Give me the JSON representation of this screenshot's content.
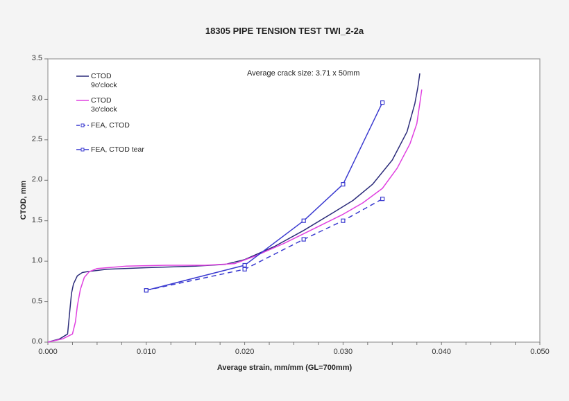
{
  "chart_data": {
    "type": "line",
    "title": "18305 PIPE TENSION TEST TWI_2-2a",
    "xlabel": "Average strain, mm/mm (GL=700mm)",
    "ylabel": "CTOD, mm",
    "xlim": [
      0.0,
      0.05
    ],
    "ylim": [
      0.0,
      3.5
    ],
    "x_ticks": [
      "0.000",
      "0.010",
      "0.020",
      "0.030",
      "0.040",
      "0.050"
    ],
    "y_ticks": [
      "0.0",
      "0.5",
      "1.0",
      "1.5",
      "2.0",
      "2.5",
      "3.0",
      "3.5"
    ],
    "grid": false,
    "legend_position": "upper-left-inside",
    "annotation": "Average crack size: 3.71 x 50mm",
    "series": [
      {
        "name": "CTOD 9o'clock",
        "color": "#2b2b7a",
        "style": "solid",
        "marker": "none",
        "x": [
          0.0,
          0.0012,
          0.002,
          0.0022,
          0.0024,
          0.0026,
          0.003,
          0.0035,
          0.004,
          0.006,
          0.01,
          0.015,
          0.018,
          0.02,
          0.023,
          0.026,
          0.029,
          0.031,
          0.033,
          0.035,
          0.0365,
          0.0373,
          0.0376,
          0.0378
        ],
        "y": [
          0.0,
          0.04,
          0.1,
          0.35,
          0.6,
          0.72,
          0.82,
          0.86,
          0.87,
          0.9,
          0.92,
          0.94,
          0.96,
          1.02,
          1.18,
          1.38,
          1.6,
          1.75,
          1.95,
          2.25,
          2.6,
          2.95,
          3.15,
          3.32
        ]
      },
      {
        "name": "CTOD 3o'clock",
        "color": "#e040e0",
        "style": "solid",
        "marker": "none",
        "x": [
          0.0,
          0.0015,
          0.0025,
          0.0028,
          0.003,
          0.0033,
          0.0037,
          0.0042,
          0.005,
          0.008,
          0.012,
          0.016,
          0.019,
          0.021,
          0.024,
          0.027,
          0.03,
          0.032,
          0.034,
          0.0355,
          0.0368,
          0.0375,
          0.0378,
          0.038
        ],
        "y": [
          0.0,
          0.04,
          0.1,
          0.25,
          0.45,
          0.65,
          0.8,
          0.87,
          0.91,
          0.94,
          0.95,
          0.95,
          0.97,
          1.06,
          1.22,
          1.4,
          1.58,
          1.72,
          1.9,
          2.15,
          2.45,
          2.7,
          2.95,
          3.12
        ]
      },
      {
        "name": "FEA, CTOD",
        "color": "#3a3ad0",
        "style": "dashed",
        "marker": "square",
        "x": [
          0.01,
          0.02,
          0.026,
          0.03,
          0.034
        ],
        "y": [
          0.64,
          0.9,
          1.27,
          1.5,
          1.77
        ]
      },
      {
        "name": "FEA, CTOD tear",
        "color": "#3a3ad0",
        "style": "solid",
        "marker": "square",
        "x": [
          0.01,
          0.02,
          0.026,
          0.03,
          0.034
        ],
        "y": [
          0.64,
          0.95,
          1.5,
          1.95,
          2.96
        ]
      }
    ]
  },
  "legend": {
    "items": [
      {
        "line1": "CTOD",
        "line2": "9o'clock"
      },
      {
        "line1": "CTOD",
        "line2": "3o'clock"
      },
      {
        "line1": "FEA, CTOD",
        "line2": ""
      },
      {
        "line1": "FEA, CTOD tear",
        "line2": ""
      }
    ]
  }
}
